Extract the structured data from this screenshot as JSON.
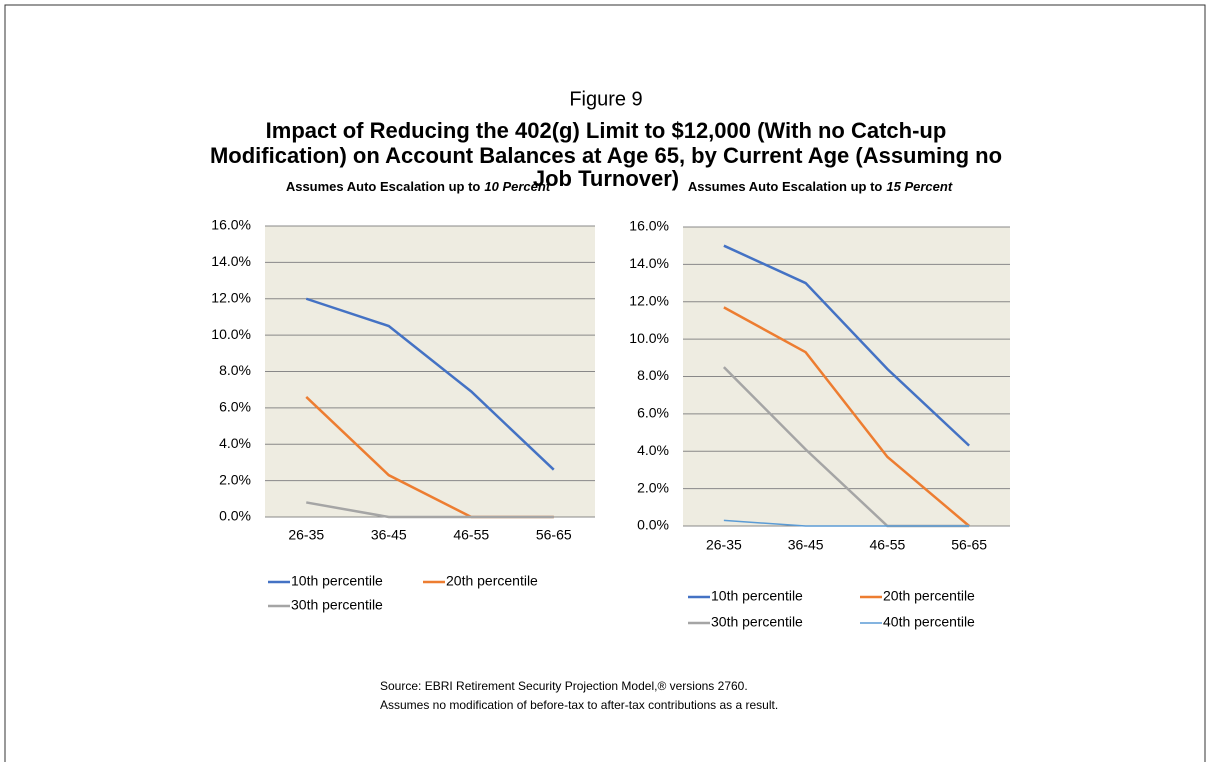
{
  "figure_label": "Figure 9",
  "title": [
    "Impact of Reducing the 402(g) Limit to $12,000 (With no Catch-up",
    "Modification) on Account Balances at Age 65, by Current Age (Assuming no",
    "Job Turnover)"
  ],
  "notes": [
    "Source: EBRI Retirement Security Projection Model,® versions 2760.",
    "Assumes no modification of before-tax to after-tax contributions as a result."
  ],
  "chart_data": [
    {
      "type": "line",
      "subtitle": [
        "Assumes Auto Escalation up to",
        "10 Percent"
      ],
      "categories": [
        "26-35",
        "36-45",
        "46-55",
        "56-65"
      ],
      "series": [
        {
          "name": "10th percentile",
          "color": "#4472c4",
          "values": [
            12.0,
            10.5,
            6.9,
            2.6
          ]
        },
        {
          "name": "20th percentile",
          "color": "#ed7d31",
          "values": [
            6.6,
            2.3,
            0,
            0
          ]
        },
        {
          "name": "30th percentile",
          "color": "#a5a5a5",
          "values": [
            0.8,
            0,
            0,
            0
          ]
        }
      ],
      "ylim": [
        0,
        16
      ],
      "yticks": [
        {
          "value": 0,
          "label": "0.0%"
        },
        {
          "value": 2,
          "label": "2.0%"
        },
        {
          "value": 4,
          "label": "4.0%"
        },
        {
          "value": 6,
          "label": "6.0%"
        },
        {
          "value": 8,
          "label": "8.0%"
        },
        {
          "value": 10,
          "label": "10.0%"
        },
        {
          "value": 12,
          "label": "12.0%"
        },
        {
          "value": 14,
          "label": "14.0%"
        },
        {
          "value": 16,
          "label": "16.0%"
        }
      ],
      "grid": true,
      "legend": "bottom"
    },
    {
      "type": "line",
      "subtitle": [
        "Assumes Auto Escalation up to",
        "15 Percent"
      ],
      "categories": [
        "26-35",
        "36-45",
        "46-55",
        "56-65"
      ],
      "series": [
        {
          "name": "10th percentile",
          "color": "#4472c4",
          "values": [
            15.0,
            13.0,
            8.4,
            4.3
          ]
        },
        {
          "name": "20th percentile",
          "color": "#ed7d31",
          "values": [
            11.7,
            9.3,
            3.7,
            0
          ]
        },
        {
          "name": "30th percentile",
          "color": "#a5a5a5",
          "values": [
            8.5,
            4.1,
            0,
            0
          ]
        },
        {
          "name": "40th percentile",
          "color": "#5b9bd5",
          "values": [
            0.3,
            0,
            0,
            0
          ]
        }
      ],
      "ylim": [
        0,
        16
      ],
      "yticks": [
        {
          "value": 0,
          "label": "0.0%"
        },
        {
          "value": 2,
          "label": "2.0%"
        },
        {
          "value": 4,
          "label": "4.0%"
        },
        {
          "value": 6,
          "label": "6.0%"
        },
        {
          "value": 8,
          "label": "8.0%"
        },
        {
          "value": 10,
          "label": "10.0%"
        },
        {
          "value": 12,
          "label": "12.0%"
        },
        {
          "value": 14,
          "label": "14.0%"
        },
        {
          "value": 16,
          "label": "16.0%"
        }
      ],
      "grid": true,
      "legend": "bottom"
    }
  ]
}
